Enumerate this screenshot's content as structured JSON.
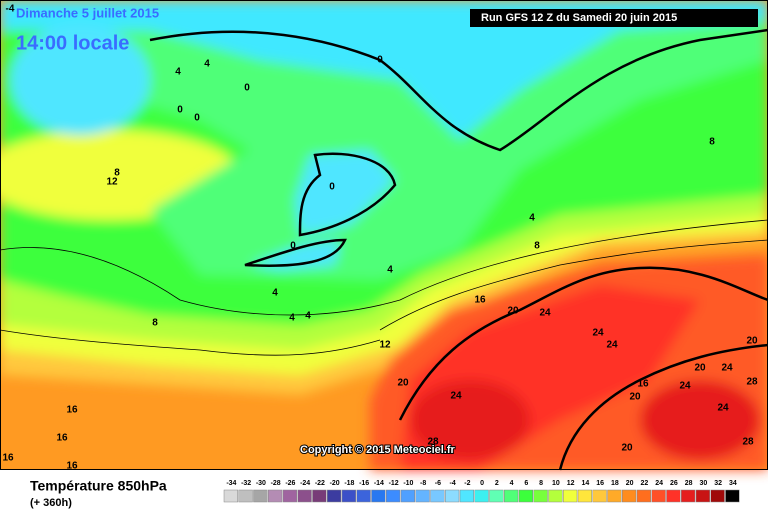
{
  "header": {
    "title": "Dimanche 5 juillet 2015",
    "time": "14:00 locale",
    "run": "Run GFS 12 Z du Samedi 20 juin 2015"
  },
  "copyright": "Copyright © 2015 Meteociel.fr",
  "legend": {
    "title": "Température 850hPa",
    "lead": "(+ 360h)",
    "scale": [
      -34,
      -32,
      -30,
      -28,
      -26,
      -24,
      -22,
      -20,
      -18,
      -16,
      -14,
      -12,
      -10,
      -8,
      -6,
      -4,
      -2,
      0,
      2,
      4,
      6,
      8,
      10,
      12,
      14,
      16,
      18,
      20,
      22,
      24,
      26,
      28,
      30,
      32,
      34
    ],
    "colors": [
      "#d9d9d9",
      "#bfbfbf",
      "#a6a6a6",
      "#b48cb4",
      "#a064a0",
      "#8c508c",
      "#783c78",
      "#3c3ca0",
      "#3c50c8",
      "#3c64dc",
      "#2878f0",
      "#3c8cff",
      "#50a0ff",
      "#64b4ff",
      "#78c8ff",
      "#8cdcff",
      "#50e6ff",
      "#3cf0f0",
      "#60ffb4",
      "#50ff78",
      "#3cff3c",
      "#78ff3c",
      "#b4ff3c",
      "#f0ff3c",
      "#ffe63c",
      "#ffc83c",
      "#ffaa28",
      "#ff8c1e",
      "#ff6e1e",
      "#ff5028",
      "#ff3228",
      "#e61e1e",
      "#c81414",
      "#a00a0a",
      "#000000"
    ]
  },
  "contour_labels": [
    -4,
    4,
    4,
    0,
    0,
    0,
    0,
    12,
    8,
    0,
    0,
    4,
    4,
    4,
    4,
    8,
    12,
    16,
    20,
    24,
    24,
    24,
    20,
    24,
    16,
    20,
    24,
    20,
    24,
    28,
    20,
    24,
    28,
    20,
    28,
    16,
    16,
    16,
    16,
    8,
    4,
    8
  ]
}
